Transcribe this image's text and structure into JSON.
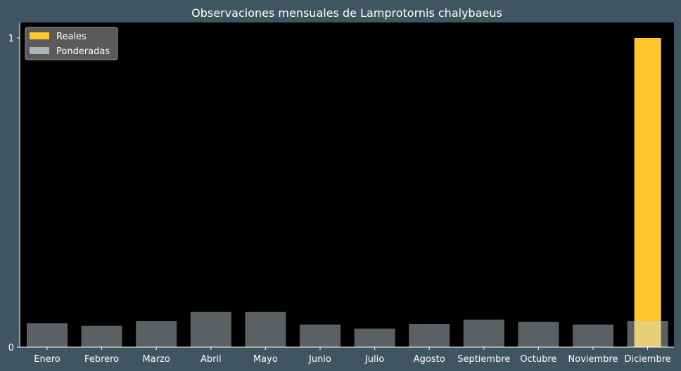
{
  "chart_data": {
    "type": "bar",
    "title": "Observaciones mensuales de Lamprotornis chalybaeus",
    "categories": [
      "Enero",
      "Febrero",
      "Marzo",
      "Abril",
      "Mayo",
      "Junio",
      "Julio",
      "Agosto",
      "Septiembre",
      "Octubre",
      "Noviembre",
      "Diciembre"
    ],
    "series": [
      {
        "name": "Reales",
        "color": "#ffc72c",
        "values": [
          0,
          0,
          0,
          0,
          0,
          0,
          0,
          0,
          0,
          0,
          0,
          1
        ]
      },
      {
        "name": "Ponderadas",
        "color": "#c9d6d9",
        "opacity": 0.45,
        "values": [
          0.077,
          0.069,
          0.084,
          0.114,
          0.114,
          0.073,
          0.06,
          0.075,
          0.089,
          0.082,
          0.073,
          0.084
        ]
      }
    ],
    "ylim": [
      0,
      1.05
    ],
    "yticks": [
      "0",
      "1"
    ],
    "legend_position": "top-left",
    "background": "#000000",
    "figure_background": "#3f5562",
    "grid": false
  }
}
